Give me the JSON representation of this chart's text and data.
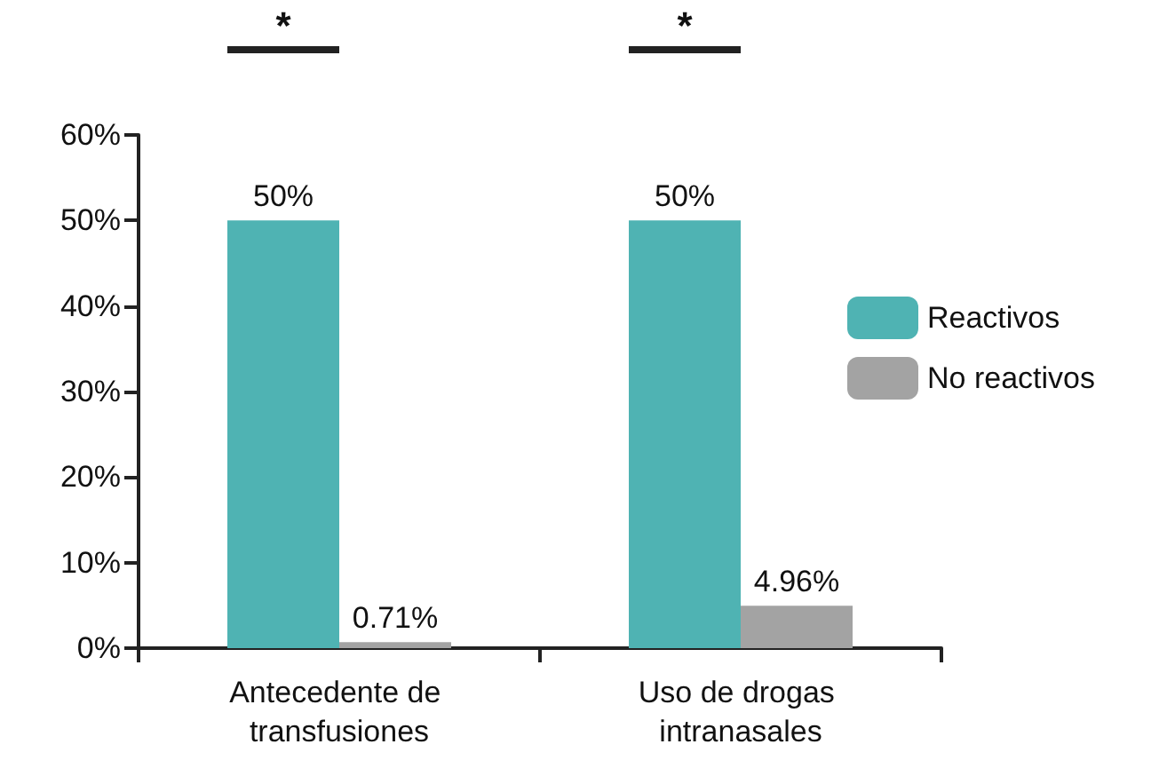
{
  "chart_data": {
    "type": "bar",
    "categories": [
      "Antecedente de transfusiones",
      "Uso de drogas intranasales"
    ],
    "series": [
      {
        "name": "Reactivos",
        "color": "#4fb3b3",
        "values": [
          50,
          50
        ],
        "value_labels": [
          "50%",
          "50%"
        ]
      },
      {
        "name": "No reactivos",
        "color": "#a3a3a3",
        "values": [
          0.71,
          4.96
        ],
        "value_labels": [
          "0.71%",
          "4.96%"
        ]
      }
    ],
    "ylim": [
      0,
      60
    ],
    "yticks": [
      {
        "value": 0,
        "label": "0%"
      },
      {
        "value": 10,
        "label": "10%"
      },
      {
        "value": 20,
        "label": "20%"
      },
      {
        "value": 30,
        "label": "30%"
      },
      {
        "value": 40,
        "label": "40%"
      },
      {
        "value": 50,
        "label": "50%"
      },
      {
        "value": 60,
        "label": "60%"
      }
    ],
    "annotations": [
      "*",
      "*"
    ],
    "grid": false,
    "legend": "right"
  }
}
